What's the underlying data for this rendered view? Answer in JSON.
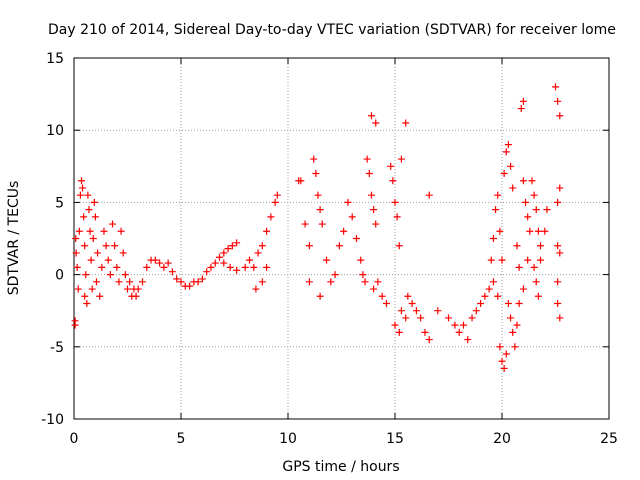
{
  "chart_data": {
    "type": "scatter",
    "title": "Day 210 of 2014, Sidereal Day-to-day VTEC variation (SDTVAR) for receiver lome",
    "xlabel": "GPS time / hours",
    "ylabel": "SDTVAR / TECUs",
    "xlim": [
      0,
      25
    ],
    "ylim": [
      -10,
      15
    ],
    "xticks": [
      "0",
      "5",
      "10",
      "15",
      "20",
      "25"
    ],
    "yticks": [
      "-10",
      "-5",
      "0",
      "5",
      "10",
      "15"
    ],
    "grid": true,
    "marker": "+",
    "color": "#ff0000",
    "series": [
      {
        "name": "SDTVAR",
        "points": [
          [
            0.05,
            -3.2
          ],
          [
            0.05,
            -3.5
          ],
          [
            0.08,
            2.5
          ],
          [
            0.1,
            1.5
          ],
          [
            0.15,
            0.5
          ],
          [
            0.2,
            -1.0
          ],
          [
            0.25,
            3.0
          ],
          [
            0.3,
            5.5
          ],
          [
            0.35,
            6.5
          ],
          [
            0.4,
            6.0
          ],
          [
            0.45,
            4.0
          ],
          [
            0.5,
            2.0
          ],
          [
            0.5,
            -1.5
          ],
          [
            0.55,
            0.0
          ],
          [
            0.6,
            -2.0
          ],
          [
            0.65,
            5.5
          ],
          [
            0.7,
            4.5
          ],
          [
            0.75,
            3.0
          ],
          [
            0.8,
            1.0
          ],
          [
            0.85,
            -1.0
          ],
          [
            0.9,
            2.5
          ],
          [
            0.95,
            5.0
          ],
          [
            1.0,
            4.0
          ],
          [
            1.05,
            -0.5
          ],
          [
            1.1,
            1.5
          ],
          [
            1.2,
            -1.5
          ],
          [
            1.3,
            0.5
          ],
          [
            1.4,
            3.0
          ],
          [
            1.5,
            2.0
          ],
          [
            1.6,
            1.0
          ],
          [
            1.7,
            0.0
          ],
          [
            1.8,
            3.5
          ],
          [
            1.9,
            2.0
          ],
          [
            2.0,
            0.5
          ],
          [
            2.1,
            -0.5
          ],
          [
            2.2,
            3.0
          ],
          [
            2.3,
            1.5
          ],
          [
            2.4,
            0.0
          ],
          [
            2.5,
            -1.0
          ],
          [
            2.6,
            -0.5
          ],
          [
            2.7,
            -1.5
          ],
          [
            2.8,
            -1.0
          ],
          [
            2.9,
            -1.5
          ],
          [
            3.0,
            -1.0
          ],
          [
            3.2,
            -0.5
          ],
          [
            3.4,
            0.5
          ],
          [
            3.6,
            1.0
          ],
          [
            3.8,
            1.0
          ],
          [
            4.0,
            0.8
          ],
          [
            4.2,
            0.5
          ],
          [
            4.4,
            0.8
          ],
          [
            4.6,
            0.2
          ],
          [
            4.8,
            -0.3
          ],
          [
            5.0,
            -0.5
          ],
          [
            5.2,
            -0.8
          ],
          [
            5.4,
            -0.8
          ],
          [
            5.6,
            -0.5
          ],
          [
            5.8,
            -0.5
          ],
          [
            6.0,
            -0.3
          ],
          [
            6.2,
            0.2
          ],
          [
            6.4,
            0.5
          ],
          [
            6.6,
            0.8
          ],
          [
            6.8,
            1.2
          ],
          [
            7.0,
            1.5
          ],
          [
            7.2,
            1.8
          ],
          [
            7.4,
            2.0
          ],
          [
            7.6,
            2.2
          ],
          [
            7.0,
            0.8
          ],
          [
            7.3,
            0.5
          ],
          [
            7.6,
            0.3
          ],
          [
            8.0,
            0.5
          ],
          [
            8.2,
            1.0
          ],
          [
            8.4,
            0.5
          ],
          [
            8.6,
            1.5
          ],
          [
            8.8,
            2.0
          ],
          [
            9.0,
            3.0
          ],
          [
            9.2,
            4.0
          ],
          [
            9.4,
            5.0
          ],
          [
            9.5,
            5.5
          ],
          [
            8.5,
            -1.0
          ],
          [
            8.8,
            -0.5
          ],
          [
            9.0,
            0.5
          ],
          [
            10.5,
            6.5
          ],
          [
            10.6,
            6.5
          ],
          [
            10.8,
            3.5
          ],
          [
            11.0,
            2.0
          ],
          [
            11.2,
            8.0
          ],
          [
            11.3,
            7.0
          ],
          [
            11.4,
            5.5
          ],
          [
            11.5,
            4.5
          ],
          [
            11.6,
            3.5
          ],
          [
            11.0,
            -0.5
          ],
          [
            11.5,
            -1.5
          ],
          [
            11.8,
            1.0
          ],
          [
            12.0,
            -0.5
          ],
          [
            12.2,
            0.0
          ],
          [
            12.4,
            2.0
          ],
          [
            12.6,
            3.0
          ],
          [
            12.8,
            5.0
          ],
          [
            13.0,
            4.0
          ],
          [
            13.2,
            2.5
          ],
          [
            13.4,
            1.0
          ],
          [
            13.5,
            0.0
          ],
          [
            13.6,
            -0.5
          ],
          [
            13.7,
            8.0
          ],
          [
            13.8,
            7.0
          ],
          [
            13.9,
            5.5
          ],
          [
            14.0,
            4.5
          ],
          [
            14.1,
            3.5
          ],
          [
            14.0,
            -1.0
          ],
          [
            13.9,
            11.0
          ],
          [
            14.1,
            10.5
          ],
          [
            14.2,
            -0.5
          ],
          [
            14.4,
            -1.5
          ],
          [
            14.6,
            -2.0
          ],
          [
            14.8,
            7.5
          ],
          [
            14.9,
            6.5
          ],
          [
            15.0,
            5.0
          ],
          [
            15.1,
            4.0
          ],
          [
            15.2,
            2.0
          ],
          [
            15.3,
            -2.5
          ],
          [
            15.5,
            -3.0
          ],
          [
            15.0,
            -3.5
          ],
          [
            15.2,
            -4.0
          ],
          [
            15.3,
            8.0
          ],
          [
            15.5,
            10.5
          ],
          [
            15.6,
            -1.5
          ],
          [
            15.8,
            -2.0
          ],
          [
            16.0,
            -2.5
          ],
          [
            16.2,
            -3.0
          ],
          [
            16.4,
            -4.0
          ],
          [
            16.6,
            -4.5
          ],
          [
            16.6,
            5.5
          ],
          [
            17.0,
            -2.5
          ],
          [
            17.5,
            -3.0
          ],
          [
            17.8,
            -3.5
          ],
          [
            18.0,
            -4.0
          ],
          [
            18.2,
            -3.5
          ],
          [
            18.4,
            -4.5
          ],
          [
            18.6,
            -3.0
          ],
          [
            18.8,
            -2.5
          ],
          [
            19.0,
            -2.0
          ],
          [
            19.2,
            -1.5
          ],
          [
            19.4,
            -1.0
          ],
          [
            19.6,
            -0.5
          ],
          [
            19.8,
            -1.5
          ],
          [
            19.9,
            -5.0
          ],
          [
            20.0,
            -6.0
          ],
          [
            20.1,
            -6.5
          ],
          [
            20.2,
            -5.5
          ],
          [
            19.5,
            1.0
          ],
          [
            19.6,
            2.5
          ],
          [
            19.7,
            4.5
          ],
          [
            19.8,
            5.5
          ],
          [
            19.9,
            3.0
          ],
          [
            20.0,
            1.0
          ],
          [
            20.1,
            7.0
          ],
          [
            20.2,
            8.5
          ],
          [
            20.3,
            9.0
          ],
          [
            20.4,
            7.5
          ],
          [
            20.5,
            6.0
          ],
          [
            20.3,
            -2.0
          ],
          [
            20.4,
            -3.0
          ],
          [
            20.5,
            -4.0
          ],
          [
            20.6,
            -5.0
          ],
          [
            20.7,
            -3.5
          ],
          [
            20.8,
            -2.0
          ],
          [
            20.7,
            2.0
          ],
          [
            20.8,
            0.5
          ],
          [
            20.9,
            11.5
          ],
          [
            21.0,
            12.0
          ],
          [
            21.0,
            6.5
          ],
          [
            21.1,
            5.0
          ],
          [
            21.2,
            4.0
          ],
          [
            21.3,
            3.0
          ],
          [
            21.0,
            -1.0
          ],
          [
            21.2,
            1.0
          ],
          [
            21.4,
            6.5
          ],
          [
            21.5,
            5.5
          ],
          [
            21.6,
            4.5
          ],
          [
            21.7,
            3.0
          ],
          [
            21.8,
            2.0
          ],
          [
            21.5,
            0.5
          ],
          [
            21.6,
            -0.5
          ],
          [
            21.7,
            -1.5
          ],
          [
            21.8,
            1.0
          ],
          [
            22.0,
            3.0
          ],
          [
            22.1,
            4.5
          ],
          [
            22.5,
            13.0
          ],
          [
            22.6,
            12.0
          ],
          [
            22.7,
            11.0
          ],
          [
            22.6,
            2.0
          ],
          [
            22.7,
            1.5
          ],
          [
            22.6,
            -2.0
          ],
          [
            22.7,
            -3.0
          ],
          [
            22.6,
            -0.5
          ],
          [
            22.6,
            5.0
          ],
          [
            22.7,
            6.0
          ]
        ]
      }
    ]
  }
}
